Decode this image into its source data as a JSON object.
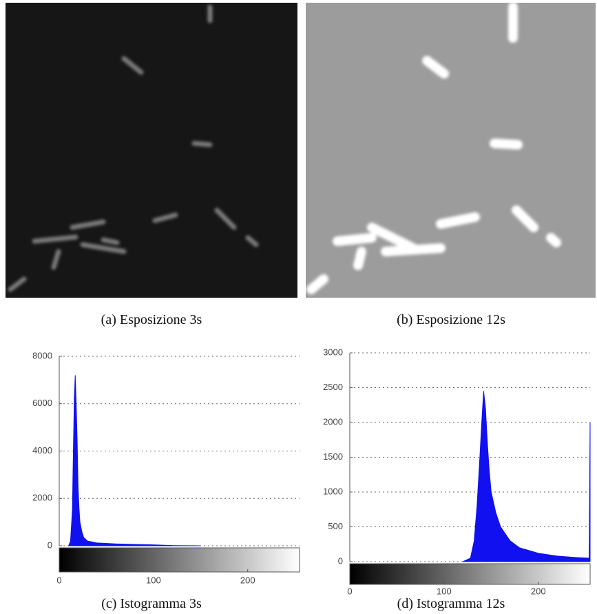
{
  "panels": [
    {
      "caption": "(a) Esposizione 3s"
    },
    {
      "caption": "(b) Esposizione 12s"
    }
  ],
  "chart_data": [
    {
      "type": "area",
      "caption": "(c) Istogramma 3s",
      "color": "#1010f0",
      "x": [
        10,
        12,
        14,
        15,
        16,
        17,
        18,
        19,
        20,
        21,
        22,
        24,
        26,
        30,
        40,
        60,
        80,
        100,
        120,
        150
      ],
      "values": [
        0,
        200,
        1500,
        4000,
        6200,
        7200,
        6000,
        4500,
        2500,
        1600,
        1000,
        600,
        350,
        200,
        120,
        80,
        60,
        40,
        10,
        0
      ],
      "xlim": [
        0,
        255
      ],
      "xticks": [
        0,
        100,
        200
      ],
      "ylim": [
        0,
        8000
      ],
      "yticks": [
        0,
        2000,
        4000,
        6000,
        8000
      ],
      "grid": true
    },
    {
      "type": "area",
      "caption": "(d) Istogramma 12s",
      "color": "#1010f0",
      "x": [
        120,
        128,
        132,
        135,
        138,
        140,
        142,
        144,
        146,
        148,
        150,
        155,
        160,
        170,
        180,
        200,
        220,
        240,
        254,
        255
      ],
      "values": [
        0,
        50,
        300,
        800,
        1500,
        2000,
        2450,
        2200,
        1700,
        1300,
        1000,
        700,
        500,
        300,
        200,
        120,
        80,
        60,
        50,
        2000
      ],
      "xlim": [
        0,
        255
      ],
      "xticks": [
        0,
        100,
        200
      ],
      "ylim": [
        0,
        3000
      ],
      "yticks": [
        0,
        500,
        1000,
        1500,
        2000,
        2500,
        3000
      ],
      "grid": true
    }
  ]
}
